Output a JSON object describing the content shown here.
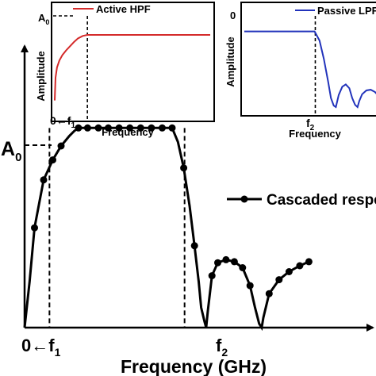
{
  "chart_data": [
    {
      "id": "main",
      "type": "line",
      "xlabel": "Frequency (GHz)",
      "ylabel": "",
      "y_tick_label": "A",
      "y_tick_sub": "0",
      "x_tick_labels": [
        {
          "main": "0",
          "arrow": "←",
          "var": "f",
          "sub": "1"
        },
        {
          "main": "",
          "arrow": "",
          "var": "f",
          "sub": "2"
        }
      ],
      "legend": {
        "label": "Cascaded response",
        "placement": "right-center"
      },
      "series": [
        {
          "x": [
            0,
            0.6,
            1.2,
            2.3,
            3.4,
            4.4,
            5.4,
            6.0,
            6.5,
            7.3,
            8.4,
            9.5,
            10.5,
            11.6,
            12.6,
            13.6,
            14.7,
            15.7,
            16.8,
            17.8,
            18.5,
            19.2,
            19.9,
            20.5,
            21.0,
            21.3,
            21.7,
            21.9,
            22.1,
            22.6,
            23.3,
            24.3,
            25.3,
            26.3,
            27.2,
            27.8,
            28.3,
            28.6,
            28.8,
            29.5,
            30.7,
            31.9,
            33.2,
            34.3
          ],
          "y": [
            0,
            0.23,
            0.5,
            0.74,
            0.84,
            0.91,
            0.96,
            0.985,
            1.0,
            1.0,
            1.0,
            1.0,
            1.0,
            1.0,
            1.0,
            1.0,
            1.0,
            1.0,
            1.0,
            1.0,
            0.93,
            0.8,
            0.61,
            0.41,
            0.23,
            0.1,
            0.03,
            0.0,
            0.08,
            0.26,
            0.325,
            0.34,
            0.33,
            0.3,
            0.21,
            0.1,
            0.02,
            0.0,
            0.05,
            0.17,
            0.24,
            0.28,
            0.31,
            0.33
          ],
          "markers_x": [
            1.2,
            2.3,
            3.4,
            4.4,
            6.5,
            7.6,
            8.9,
            10.1,
            11.4,
            12.7,
            14.0,
            15.3,
            16.6,
            17.8,
            19.2,
            20.5,
            22.6,
            23.3,
            24.3,
            25.3,
            26.3,
            27.2,
            29.5,
            30.7,
            31.9,
            33.2,
            34.3
          ],
          "markers_y": [
            0.5,
            0.74,
            0.84,
            0.91,
            1.0,
            1.0,
            1.0,
            1.0,
            1.0,
            1.0,
            1.0,
            1.0,
            1.0,
            1.0,
            0.8,
            0.41,
            0.26,
            0.325,
            0.34,
            0.33,
            0.3,
            0.21,
            0.17,
            0.24,
            0.28,
            0.31,
            0.33
          ]
        }
      ],
      "f1": 3.0,
      "f_right_cutoff": 19.3,
      "f2": 22.1,
      "xlim": [
        0,
        40
      ],
      "ylim": [
        0,
        1.2
      ]
    },
    {
      "id": "inset_hpf",
      "type": "line",
      "title": "Active HPF",
      "xlabel": "Frequency",
      "ylabel": "Amplitude",
      "y_tick_label": "A",
      "y_tick_sub": "0",
      "x_tick_label": {
        "main": "0",
        "arrow": "←",
        "var": "f",
        "sub": "1"
      },
      "color": "#d42a2a",
      "series": [
        {
          "name": "Active HPF",
          "x": [
            0,
            0.1,
            0.3,
            0.6,
            1.0,
            1.5,
            2.0,
            2.5,
            3.0,
            3.6,
            4.2,
            5,
            8,
            12,
            16,
            20
          ],
          "y": [
            0.05,
            0.38,
            0.53,
            0.63,
            0.71,
            0.78,
            0.84,
            0.9,
            0.95,
            0.985,
            1.0,
            1.0,
            1.0,
            1.0,
            1.0,
            1.0
          ]
        }
      ],
      "f1": 4.2,
      "xlim": [
        0,
        20
      ],
      "ylim": [
        0,
        1.08
      ]
    },
    {
      "id": "inset_lpf",
      "type": "line",
      "title": "Passive LPF",
      "xlabel": "Frequency",
      "ylabel": "Amplitude",
      "y_tick_label": "0",
      "x_tick_label": {
        "main": "",
        "arrow": "",
        "var": "f",
        "sub": "2"
      },
      "color": "#2233bb",
      "series": [
        {
          "name": "Passive LPF",
          "x": [
            0,
            2,
            6,
            9,
            9.9,
            10.6,
            11.2,
            11.8,
            12.2,
            12.6,
            12.9,
            13.3,
            13.8,
            14.3,
            14.8,
            15.2,
            15.6,
            15.95,
            16.2,
            16.6,
            17.2,
            17.8,
            18.4,
            19.0
          ],
          "y": [
            1.0,
            1.0,
            1.0,
            1.0,
            1.0,
            0.88,
            0.64,
            0.34,
            0.12,
            0.02,
            0.0,
            0.16,
            0.27,
            0.3,
            0.25,
            0.12,
            0.03,
            0.0,
            0.08,
            0.17,
            0.22,
            0.23,
            0.2,
            0.14
          ]
        }
      ],
      "f2": 10.0,
      "xlim": [
        0,
        19
      ],
      "ylim": [
        0,
        1.08
      ]
    }
  ]
}
